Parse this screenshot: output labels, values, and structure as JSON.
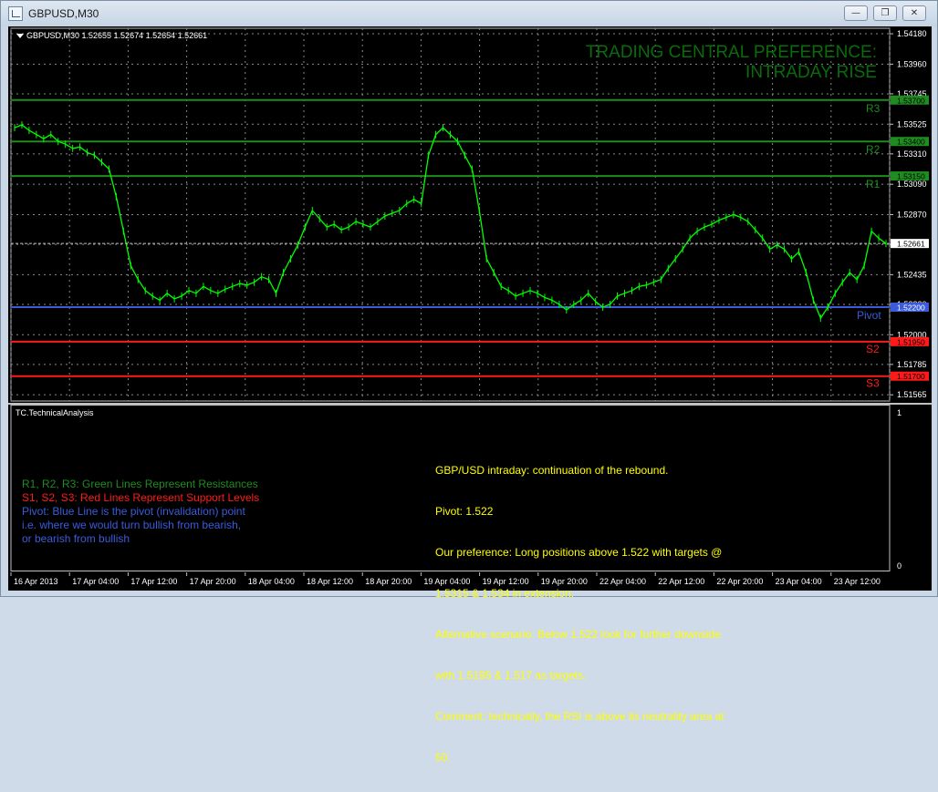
{
  "window": {
    "title": "GBPUSD,M30",
    "minimize_icon": "minimize-icon",
    "restore_icon": "restore-icon",
    "close_icon": "close-icon"
  },
  "chart": {
    "ohlc_label": "GBPUSD,M30  1.52655 1.52674 1.52654 1.52661",
    "preference_line1": "TRADING CENTRAL PREFERENCE:",
    "preference_line2": "INTRADAY RISE",
    "colors": {
      "resistance": "#1f8c1f",
      "support": "#ff1a1a",
      "pivot": "#3b5bdb",
      "candle": "#00ff00",
      "grid": "#888888",
      "preference": "#0a6b0a",
      "analysis": "#ffff00"
    },
    "price_axis": [
      "1.54180",
      "1.53960",
      "1.53745",
      "1.53525",
      "1.53310",
      "1.53090",
      "1.52870",
      "1.52655",
      "1.52435",
      "1.52220",
      "1.52000",
      "1.51785",
      "1.51565"
    ],
    "levels": [
      {
        "label": "R3",
        "price_tag": "1.53700",
        "price": 1.537,
        "kind": "resistance"
      },
      {
        "label": "R2",
        "price_tag": "1.53400",
        "price": 1.534,
        "kind": "resistance"
      },
      {
        "label": "R1",
        "price_tag": "1.53150",
        "price": 1.5315,
        "kind": "resistance"
      },
      {
        "label": "Pivot",
        "price_tag": "1.52200",
        "price": 1.522,
        "kind": "pivot"
      },
      {
        "label": "S2",
        "price_tag": "1.51950",
        "price": 1.5195,
        "kind": "support"
      },
      {
        "label": "S3",
        "price_tag": "1.51700",
        "price": 1.517,
        "kind": "support"
      }
    ],
    "current_price": "1.52661",
    "time_axis": [
      "16 Apr 2013",
      "17 Apr 04:00",
      "17 Apr 12:00",
      "17 Apr 20:00",
      "18 Apr 04:00",
      "18 Apr 12:00",
      "18 Apr 20:00",
      "19 Apr 04:00",
      "19 Apr 12:00",
      "19 Apr 20:00",
      "22 Apr 04:00",
      "22 Apr 12:00",
      "22 Apr 20:00",
      "23 Apr 04:00",
      "23 Apr 12:00"
    ]
  },
  "indicator": {
    "title": "TC.TechnicalAnalysis",
    "scale_top": "1",
    "scale_bottom": "0",
    "legend": [
      {
        "text": "R1, R2, R3: Green Lines Represent Resistances",
        "color": "#1f8c1f"
      },
      {
        "text": "S1, S2, S3: Red Lines Represent Support Levels",
        "color": "#ff1a1a"
      },
      {
        "text": "Pivot: Blue Line is the pivot (invalidation) point",
        "color": "#3b5bdb"
      },
      {
        "text": "i.e. where we would turn bullish from bearish,",
        "color": "#3b5bdb"
      },
      {
        "text": "or bearish from bullish",
        "color": "#3b5bdb"
      }
    ],
    "analysis": [
      "GBP/USD intraday: continuation of the rebound.",
      "Pivot: 1.522",
      "Our preference: Long positions above 1.522 with targets @",
      "1.5315 & 1.534 in extension.",
      "Alternative scenario: Below 1.522 look for further downside",
      "with 1.5195 & 1.517 as targets.",
      "Comment: technically, the RSI is above its neutrality area at",
      "50."
    ]
  },
  "chart_data": {
    "type": "line",
    "title": "GBPUSD,M30",
    "price_series": [
      1.535,
      1.5352,
      1.5348,
      1.5345,
      1.5342,
      1.5345,
      1.534,
      1.5338,
      1.5335,
      1.5336,
      1.5332,
      1.533,
      1.5325,
      1.532,
      1.53,
      1.5275,
      1.525,
      1.524,
      1.5232,
      1.5228,
      1.5225,
      1.523,
      1.5226,
      1.5228,
      1.5232,
      1.523,
      1.5235,
      1.5232,
      1.523,
      1.5233,
      1.5235,
      1.5237,
      1.5236,
      1.5238,
      1.5242,
      1.524,
      1.523,
      1.5245,
      1.5255,
      1.5265,
      1.5278,
      1.529,
      1.5284,
      1.5278,
      1.528,
      1.5276,
      1.5278,
      1.5282,
      1.528,
      1.5278,
      1.5282,
      1.5286,
      1.5288,
      1.529,
      1.5295,
      1.5298,
      1.5295,
      1.533,
      1.5345,
      1.535,
      1.5345,
      1.534,
      1.533,
      1.532,
      1.529,
      1.5255,
      1.5245,
      1.5235,
      1.5232,
      1.5228,
      1.523,
      1.5232,
      1.523,
      1.5227,
      1.5225,
      1.5222,
      1.5218,
      1.5222,
      1.5225,
      1.523,
      1.5224,
      1.522,
      1.5222,
      1.5228,
      1.523,
      1.5232,
      1.5235,
      1.5236,
      1.5238,
      1.524,
      1.5248,
      1.5255,
      1.5262,
      1.527,
      1.5275,
      1.5278,
      1.528,
      1.5283,
      1.5285,
      1.5287,
      1.5285,
      1.5282,
      1.5276,
      1.527,
      1.5262,
      1.5265,
      1.5262,
      1.5255,
      1.526,
      1.5245,
      1.5225,
      1.5212,
      1.522,
      1.523,
      1.5238,
      1.5245,
      1.524,
      1.525,
      1.5275,
      1.527,
      1.5266
    ],
    "ylim": [
      1.5152,
      1.5422
    ]
  }
}
